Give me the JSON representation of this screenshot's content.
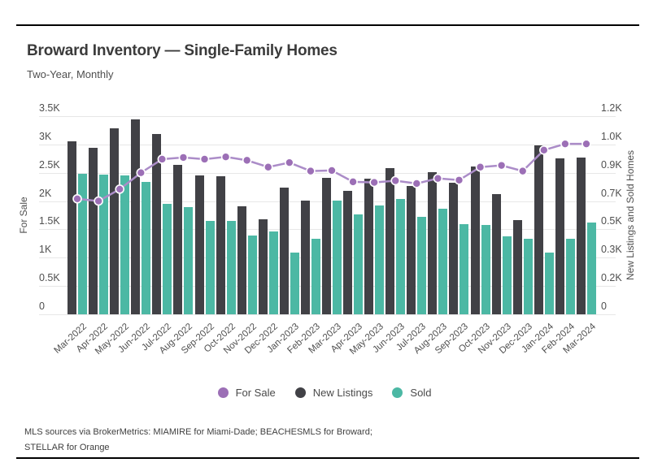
{
  "page": {
    "title": "Broward Inventory — Single-Family Homes",
    "subtitle": "Two-Year, Monthly",
    "footer_line1": "MLS sources via BrokerMetrics: MIAMIRE for Miami-Dade; BEACHESMLS for Broward;",
    "footer_line2": "STELLAR for Orange"
  },
  "colors": {
    "background": "#ffffff",
    "rule": "#000000",
    "grid": "#e7e7e7",
    "text": "#4f4f4f",
    "title_text": "#3b3b3b",
    "for_sale_dot": "#9c6fb6",
    "for_sale_line": "#ab8cc8",
    "new_listings": "#414146",
    "sold": "#4cb8a4"
  },
  "legend": {
    "items": [
      {
        "label": "For Sale",
        "color": "#9c6fb6"
      },
      {
        "label": "New Listings",
        "color": "#414146"
      },
      {
        "label": "Sold",
        "color": "#4cb8a4"
      }
    ]
  },
  "chart_data": {
    "type": "bar",
    "subtype": "grouped bars with overlaid line (dual axis)",
    "title": "Broward Inventory — Single-Family Homes",
    "subtitle": "Two-Year, Monthly",
    "grid": true,
    "legend_position": "bottom",
    "categories": [
      "Mar-2022",
      "Apr-2022",
      "May-2022",
      "Jun-2022",
      "Jul-2022",
      "Aug-2022",
      "Sep-2022",
      "Oct-2022",
      "Nov-2022",
      "Dec-2022",
      "Jan-2023",
      "Feb-2023",
      "Mar-2023",
      "Apr-2023",
      "May-2023",
      "Jun-2023",
      "Jul-2023",
      "Aug-2023",
      "Sep-2023",
      "Oct-2023",
      "Nov-2023",
      "Dec-2023",
      "Jan-2024",
      "Feb-2024",
      "Mar-2024"
    ],
    "left_axis": {
      "title": "For Sale",
      "range": [
        0,
        3500
      ],
      "tick_values": [
        0,
        500,
        1000,
        1500,
        2000,
        2500,
        3000,
        3500
      ],
      "ticks": [
        "0",
        "0.5K",
        "1K",
        "1.5K",
        "2K",
        "2.5K",
        "3K",
        "3.5K"
      ]
    },
    "right_axis": {
      "title": "New Listings and Sold Homes",
      "range": [
        0,
        1200
      ],
      "ticks": [
        "0",
        "0.2K",
        "0.3K",
        "0.5K",
        "0.7K",
        "0.9K",
        "1.0K",
        "1.2K"
      ]
    },
    "series": [
      {
        "name": "For Sale",
        "type": "line",
        "axis": "left",
        "color": "#9c6fb6",
        "line_color": "#ab8cc8",
        "values": [
          2040,
          2000,
          2210,
          2500,
          2740,
          2770,
          2740,
          2780,
          2720,
          2600,
          2680,
          2530,
          2540,
          2340,
          2330,
          2360,
          2310,
          2400,
          2370,
          2600,
          2630,
          2530,
          2900,
          3010,
          3010
        ]
      },
      {
        "name": "New Listings",
        "type": "bar",
        "axis": "right",
        "color": "#414146",
        "values": [
          1050,
          1010,
          1125,
          1180,
          1090,
          905,
          840,
          835,
          655,
          575,
          765,
          690,
          825,
          750,
          820,
          885,
          775,
          860,
          795,
          895,
          730,
          570,
          1025,
          945,
          950
        ]
      },
      {
        "name": "Sold",
        "type": "bar",
        "axis": "right",
        "color": "#4cb8a4",
        "values": [
          850,
          845,
          840,
          800,
          670,
          650,
          565,
          565,
          475,
          500,
          375,
          455,
          690,
          605,
          660,
          700,
          590,
          640,
          545,
          540,
          470,
          455,
          375,
          455,
          555
        ]
      }
    ]
  }
}
